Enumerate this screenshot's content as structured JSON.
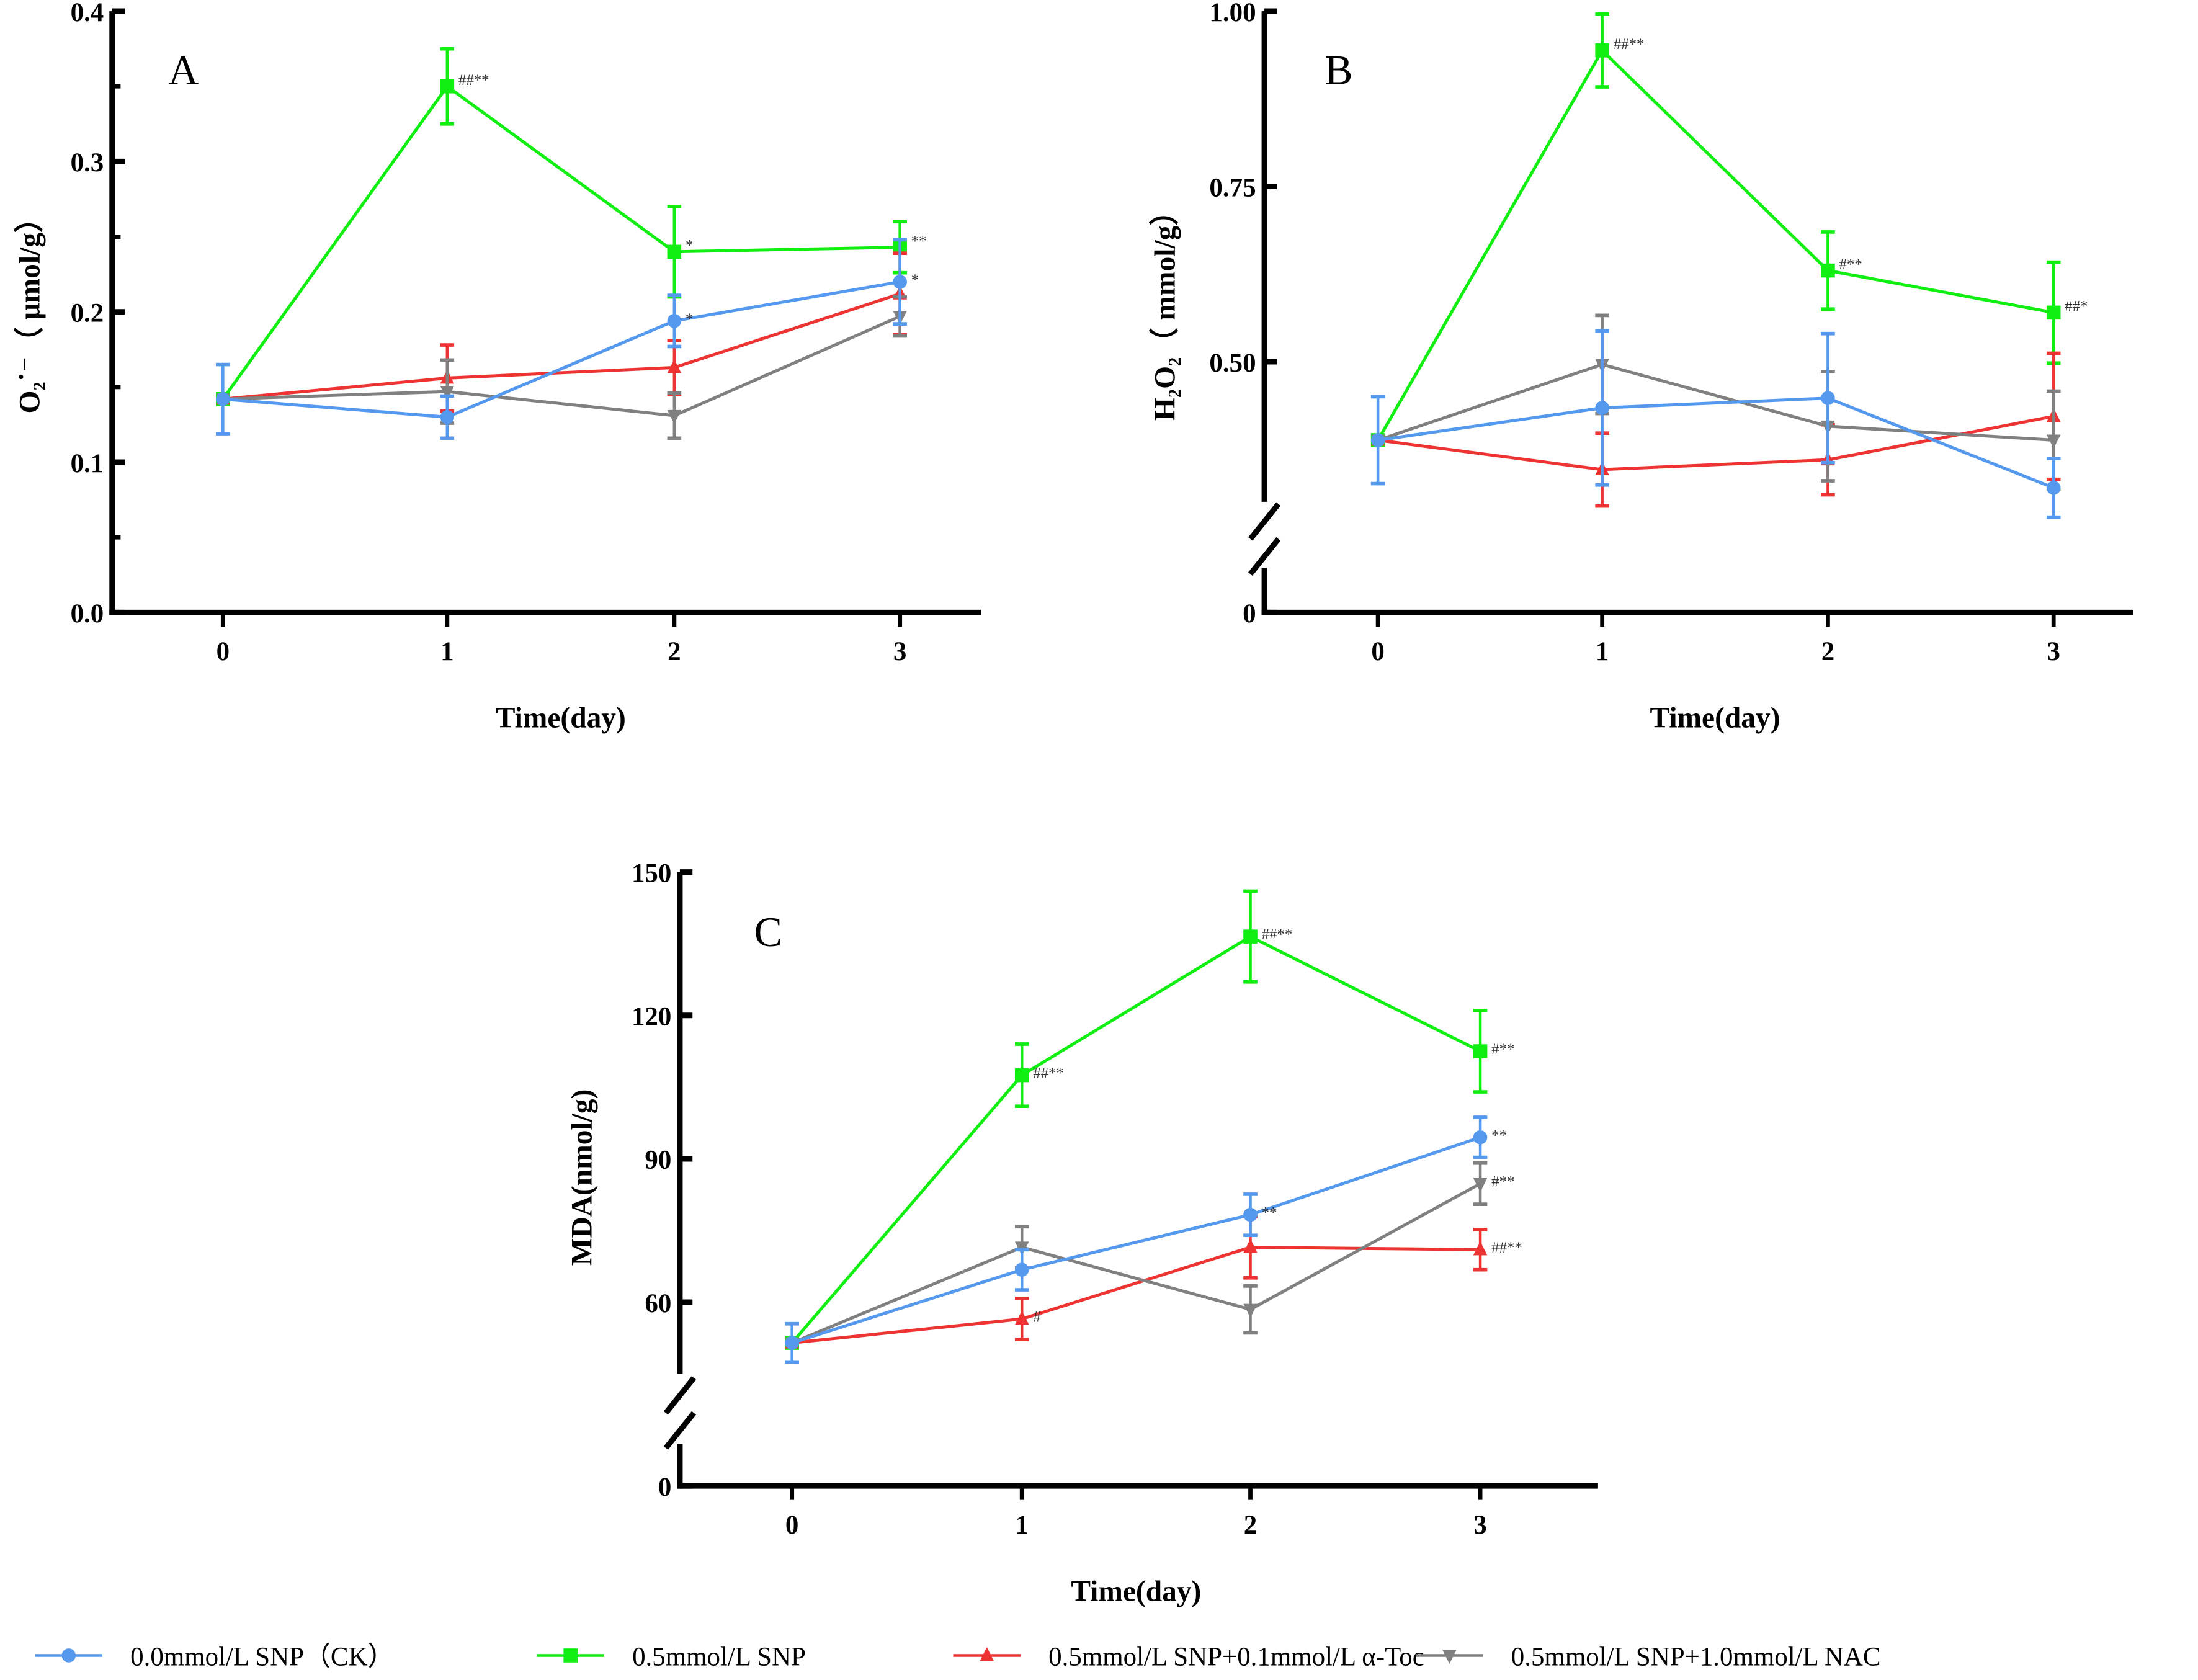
{
  "colors": {
    "ck": "#5599ee",
    "snp": "#11ee11",
    "toc": "#ee3333",
    "nac": "#808080",
    "axis": "#000000"
  },
  "legend": [
    {
      "key": "ck",
      "label": "0.0mmol/L SNP（CK）",
      "marker": "circle"
    },
    {
      "key": "snp",
      "label": "0.5mmol/L SNP",
      "marker": "square"
    },
    {
      "key": "toc",
      "label": "0.5mmol/L SNP+0.1mmol/L α-Toc",
      "marker": "triangle-up"
    },
    {
      "key": "nac",
      "label": "0.5mmol/L SNP+1.0mmol/L NAC",
      "marker": "triangle-down"
    }
  ],
  "chart_data": [
    {
      "type": "line",
      "panel": "A",
      "xlabel": "Time(day)",
      "ylabel": "O₂˙⁻（ μmol/g）",
      "x": [
        0,
        1,
        2,
        3
      ],
      "xticks": [
        "0",
        "1",
        "2",
        "3"
      ],
      "ylim": [
        0,
        0.4
      ],
      "yticks": [
        0,
        0.1,
        0.2,
        0.3,
        0.4
      ],
      "ytick_labels": [
        "0.0",
        "0.1",
        "0.2",
        "0.3",
        "0.4"
      ],
      "axis_break": false,
      "series": [
        {
          "key": "ck",
          "values": [
            0.142,
            0.13,
            0.194,
            0.22
          ],
          "err": [
            0.023,
            0.014,
            0.017,
            0.028
          ],
          "ann": [
            "",
            "",
            "*",
            "*"
          ]
        },
        {
          "key": "snp",
          "values": [
            0.142,
            0.35,
            0.24,
            0.243
          ],
          "err": [
            0,
            0.025,
            0.03,
            0.017
          ],
          "ann": [
            "",
            "##**",
            "*",
            "**"
          ]
        },
        {
          "key": "toc",
          "values": [
            0.142,
            0.156,
            0.163,
            0.212
          ],
          "err": [
            0,
            0.022,
            0.018,
            0.027
          ],
          "ann": [
            "",
            "",
            "",
            ""
          ]
        },
        {
          "key": "nac",
          "values": [
            0.142,
            0.147,
            0.131,
            0.197
          ],
          "err": [
            0,
            0.021,
            0.015,
            0.013
          ],
          "ann": [
            "",
            "",
            "",
            ""
          ]
        }
      ]
    },
    {
      "type": "line",
      "panel": "B",
      "xlabel": "Time(day)",
      "ylabel": "H₂O₂（ mmol/g）",
      "x": [
        0,
        1,
        2,
        3
      ],
      "xticks": [
        "0",
        "1",
        "2",
        "3"
      ],
      "ylim": [
        0,
        1.0
      ],
      "yticks": [
        0,
        0.5,
        0.75,
        1.0
      ],
      "ytick_labels": [
        "0",
        "0.50",
        "0.75",
        "1.00"
      ],
      "axis_break": true,
      "break_range": [
        0,
        0.3
      ],
      "series": [
        {
          "key": "ck",
          "values": [
            0.388,
            0.434,
            0.448,
            0.32
          ],
          "err": [
            0.062,
            0.11,
            0.092,
            0.042
          ],
          "ann": [
            "",
            "",
            "",
            ""
          ]
        },
        {
          "key": "snp",
          "values": [
            0.388,
            0.944,
            0.63,
            0.57
          ],
          "err": [
            0,
            0.052,
            0.055,
            0.072
          ],
          "ann": [
            "",
            "##**",
            "#**",
            "##*"
          ]
        },
        {
          "key": "toc",
          "values": [
            0.388,
            0.346,
            0.36,
            0.422
          ],
          "err": [
            0,
            0.052,
            0.05,
            0.09
          ],
          "ann": [
            "",
            "",
            "",
            ""
          ]
        },
        {
          "key": "nac",
          "values": [
            0.388,
            0.496,
            0.408,
            0.388
          ],
          "err": [
            0,
            0.07,
            0.078,
            0.07
          ],
          "ann": [
            "",
            "",
            "",
            ""
          ]
        }
      ]
    },
    {
      "type": "line",
      "panel": "C",
      "xlabel": "Time(day)",
      "ylabel": "MDA(nmol/g)",
      "x": [
        0,
        1,
        2,
        3
      ],
      "xticks": [
        "0",
        "1",
        "2",
        "3"
      ],
      "ylim": [
        0,
        150
      ],
      "yticks": [
        0,
        60,
        90,
        120,
        150
      ],
      "ytick_labels": [
        "0",
        "60",
        "90",
        "120",
        "150"
      ],
      "axis_break": true,
      "break_range": [
        0,
        45
      ],
      "series": [
        {
          "key": "ck",
          "values": [
            51.5,
            66.8,
            78.3,
            94.5
          ],
          "err": [
            4.0,
            4.2,
            4.3,
            4.2
          ],
          "ann": [
            "",
            "",
            "**",
            "**"
          ]
        },
        {
          "key": "snp",
          "values": [
            51.5,
            107.5,
            136.5,
            112.5
          ],
          "err": [
            0,
            6.5,
            9.5,
            8.5
          ],
          "ann": [
            "",
            "##**",
            "##**",
            "#**"
          ]
        },
        {
          "key": "toc",
          "values": [
            51.5,
            56.5,
            71.5,
            71.0
          ],
          "err": [
            0,
            4.3,
            6.4,
            4.2
          ],
          "ann": [
            "",
            "#",
            "",
            "##**"
          ]
        },
        {
          "key": "nac",
          "values": [
            51.5,
            71.5,
            58.5,
            84.8
          ],
          "err": [
            0,
            4.3,
            4.9,
            4.3
          ],
          "ann": [
            "",
            "",
            "",
            "#**"
          ]
        }
      ]
    }
  ]
}
